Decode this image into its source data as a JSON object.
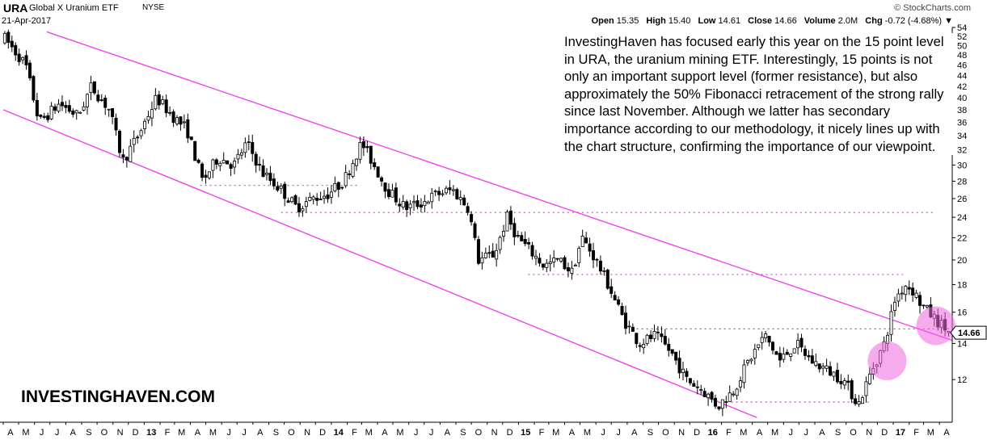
{
  "header": {
    "ticker": "URA",
    "name": "Global X Uranium ETF",
    "exchange": "NYSE",
    "date": "21-Apr-2017",
    "brand": "© StockCharts.com",
    "stats": [
      {
        "label": "Open",
        "value": "15.35"
      },
      {
        "label": "High",
        "value": "15.40"
      },
      {
        "label": "Low",
        "value": "14.61"
      },
      {
        "label": "Close",
        "value": "14.66"
      },
      {
        "label": "Volume",
        "value": "2.0M"
      },
      {
        "label": "Chg",
        "value": "-0.72 (-4.68%)"
      }
    ],
    "chg_arrow": "▼"
  },
  "annotation": "InvestingHaven has focused early this year on the 15 point level in URA, the uranium mining ETF. Interestingly, 15 points is not only an important support level (former resistance), but also approximately the 50% Fibonacci retracement of the strong rally since last November. Although we latter has secondary importance according to our methodology, it nicely lines up with the chart structure, confirming the importance of our viewpoint.",
  "watermark": "INVESTINGHAVEN.COM",
  "colors": {
    "channel": "#ee44ee",
    "dotted": "#dd33dd",
    "highlight": "#ee66dd",
    "candle": "#000000",
    "grid": "#000000"
  },
  "chart_data": {
    "type": "candlestick",
    "x_range": [
      "2012-04",
      "2017-04"
    ],
    "y_scale": "log",
    "ylim": [
      10,
      54
    ],
    "y_ticks": [
      12,
      14,
      16,
      18,
      20,
      22,
      24,
      26,
      28,
      30,
      32,
      34,
      36,
      38,
      40,
      42,
      44,
      46,
      48,
      50,
      52,
      54
    ],
    "last_price_label": "14.66",
    "x_tick_labels": [
      "A",
      "M",
      "J",
      "J",
      "A",
      "S",
      "O",
      "N",
      "D",
      "13",
      "F",
      "M",
      "A",
      "M",
      "J",
      "J",
      "A",
      "S",
      "O",
      "N",
      "D",
      "14",
      "F",
      "M",
      "A",
      "M",
      "J",
      "J",
      "A",
      "S",
      "O",
      "N",
      "D",
      "15",
      "F",
      "M",
      "A",
      "M",
      "J",
      "J",
      "A",
      "S",
      "O",
      "N",
      "D",
      "16",
      "F",
      "M",
      "A",
      "M",
      "J",
      "J",
      "A",
      "S",
      "O",
      "N",
      "D",
      "17",
      "F",
      "M",
      "A"
    ],
    "year_labels": [
      "13",
      "14",
      "15",
      "16",
      "17"
    ],
    "path_keypoints": [
      [
        "2012-04-01",
        52
      ],
      [
        "2012-05-15",
        46
      ],
      [
        "2012-06-10",
        36
      ],
      [
        "2012-07-20",
        39
      ],
      [
        "2012-08-25",
        37
      ],
      [
        "2012-09-20",
        42
      ],
      [
        "2012-10-25",
        38
      ],
      [
        "2012-11-20",
        30.5
      ],
      [
        "2012-12-20",
        34
      ],
      [
        "2013-01-25",
        40
      ],
      [
        "2013-02-25",
        37
      ],
      [
        "2013-03-25",
        35
      ],
      [
        "2013-04-25",
        28
      ],
      [
        "2013-05-25",
        31
      ],
      [
        "2013-06-25",
        30
      ],
      [
        "2013-07-20",
        33
      ],
      [
        "2013-08-20",
        29
      ],
      [
        "2013-09-25",
        27
      ],
      [
        "2013-10-25",
        25
      ],
      [
        "2013-11-25",
        26
      ],
      [
        "2013-12-25",
        26.5
      ],
      [
        "2014-01-25",
        28
      ],
      [
        "2014-03-01",
        33
      ],
      [
        "2014-03-25",
        30
      ],
      [
        "2014-04-20",
        27
      ],
      [
        "2014-05-25",
        25
      ],
      [
        "2014-06-25",
        25.5
      ],
      [
        "2014-07-25",
        26.5
      ],
      [
        "2014-08-25",
        27
      ],
      [
        "2014-09-25",
        25
      ],
      [
        "2014-10-15",
        20
      ],
      [
        "2014-11-15",
        20.5
      ],
      [
        "2014-12-10",
        24
      ],
      [
        "2014-12-30",
        22
      ],
      [
        "2015-01-20",
        21
      ],
      [
        "2015-02-20",
        19.5
      ],
      [
        "2015-03-20",
        20
      ],
      [
        "2015-04-15",
        19
      ],
      [
        "2015-05-05",
        22
      ],
      [
        "2015-06-01",
        20
      ],
      [
        "2015-06-25",
        18
      ],
      [
        "2015-07-25",
        15.5
      ],
      [
        "2015-08-25",
        14
      ],
      [
        "2015-09-25",
        14.5
      ],
      [
        "2015-10-25",
        13.5
      ],
      [
        "2015-11-25",
        12
      ],
      [
        "2015-12-25",
        11.5
      ],
      [
        "2016-01-25",
        10.7
      ],
      [
        "2016-02-25",
        11.5
      ],
      [
        "2016-03-25",
        13
      ],
      [
        "2016-04-25",
        14.5
      ],
      [
        "2016-05-25",
        13
      ],
      [
        "2016-06-25",
        14
      ],
      [
        "2016-07-25",
        13
      ],
      [
        "2016-08-25",
        12.5
      ],
      [
        "2016-09-25",
        12
      ],
      [
        "2016-10-25",
        10.8
      ],
      [
        "2016-11-20",
        12.5
      ],
      [
        "2016-12-15",
        14
      ],
      [
        "2017-01-05",
        17
      ],
      [
        "2017-01-25",
        18
      ],
      [
        "2017-02-10",
        17.5
      ],
      [
        "2017-02-25",
        16.5
      ],
      [
        "2017-03-25",
        15.5
      ],
      [
        "2017-04-21",
        14.66
      ]
    ],
    "channel_lines": [
      {
        "role": "upper",
        "from": [
          "2012-06-25",
          53
        ],
        "to": [
          "2017-04-25",
          14.2
        ]
      },
      {
        "role": "lower",
        "from": [
          "2012-04-01",
          38
        ],
        "to": [
          "2016-04-10",
          10.2
        ]
      }
    ],
    "support_lines": [
      {
        "y": 27.5,
        "from": "2013-04-20",
        "to": "2014-02-20"
      },
      {
        "y": 24.5,
        "from": "2013-09-25",
        "to": "2017-03-25"
      },
      {
        "y": 18.8,
        "from": "2015-01-20",
        "to": "2017-01-20"
      },
      {
        "y": 14.9,
        "from": "2015-08-10",
        "to": "2017-04-25"
      },
      {
        "y": 10.9,
        "from": "2016-02-20",
        "to": "2016-11-20"
      }
    ],
    "highlights": [
      {
        "center": [
          "2016-12-20",
          13.0
        ]
      },
      {
        "center": [
          "2017-03-25",
          15.1
        ]
      }
    ]
  }
}
